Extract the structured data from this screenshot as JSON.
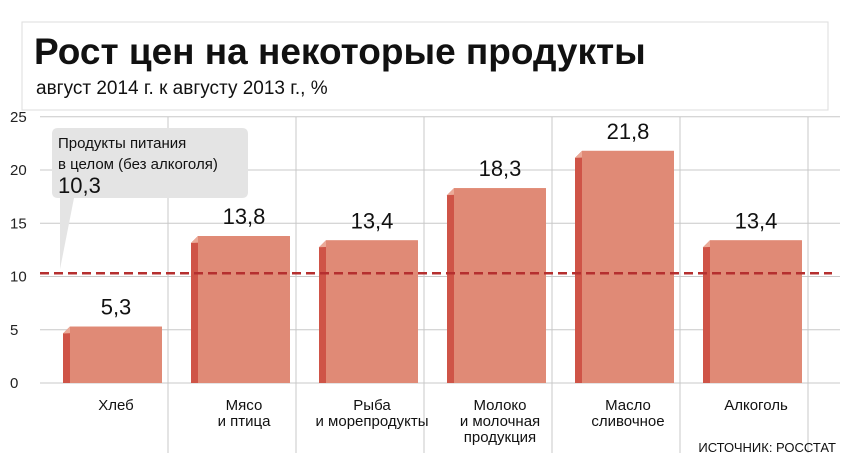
{
  "chart_data": {
    "type": "bar",
    "title": "Рост цен на некоторые продукты",
    "subtitle": "август 2014 г. к августу 2013 г., %",
    "categories": [
      [
        "Хлеб"
      ],
      [
        "Мясо",
        "и птица"
      ],
      [
        "Рыба",
        "и морепродукты"
      ],
      [
        "Молоко",
        "и молочная",
        "продукция"
      ],
      [
        "Масло",
        "сливочное"
      ],
      [
        "Алкоголь"
      ]
    ],
    "values": [
      5.3,
      13.8,
      13.4,
      18.3,
      21.8,
      13.4
    ],
    "value_labels": [
      "5,3",
      "13,8",
      "13,4",
      "18,3",
      "21,8",
      "13,4"
    ],
    "ylim": [
      0,
      25
    ],
    "yticks": [
      0,
      5,
      10,
      15,
      20,
      25
    ],
    "grid": true,
    "reference_line": {
      "value": 10.3,
      "label_lines": [
        "Продукты питания",
        "в целом (без алкоголя)"
      ],
      "value_label": "10,3"
    },
    "colors": {
      "bar_front": "#e08a76",
      "bar_side": "#cf5447",
      "bar_top": "#ebaa98",
      "reference": "#b52f2f",
      "grid": "#c8c8c8",
      "callout_bg": "#e4e4e4"
    },
    "source": "ИСТОЧНИК: РОССТАТ"
  }
}
